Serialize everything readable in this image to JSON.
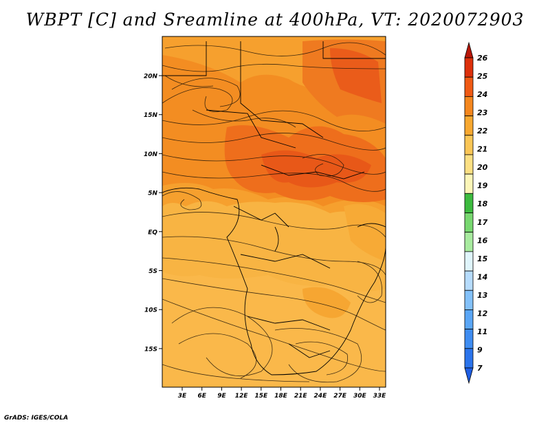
{
  "title": "WBPT [C] and Sreamline at 400hPa, VT: 2020072903",
  "credit": "GrADS: IGES/COLA",
  "map": {
    "lon_ticks": [
      "3E",
      "6E",
      "9E",
      "12E",
      "15E",
      "18E",
      "21E",
      "24E",
      "27E",
      "30E",
      "33E"
    ],
    "lat_ticks": [
      "20N",
      "15N",
      "10N",
      "5N",
      "EQ",
      "5S",
      "10S",
      "15S"
    ],
    "lon_range": [
      0,
      35
    ],
    "lat_range": [
      -20,
      25
    ],
    "background_color": "#f7b23e"
  },
  "colorbar": {
    "levels": [
      "7",
      "9",
      "11",
      "12",
      "13",
      "14",
      "15",
      "16",
      "17",
      "18",
      "19",
      "20",
      "21",
      "22",
      "23",
      "24",
      "25",
      "26"
    ],
    "colors": [
      "#1e5ee3",
      "#2b74ec",
      "#3f8df2",
      "#5aa6f6",
      "#83c1fa",
      "#b6dcfd",
      "#e0f5fc",
      "#a8eb9f",
      "#78d870",
      "#3dbb3f",
      "#fdf6b8",
      "#fde083",
      "#fbc656",
      "#f8a830",
      "#f5871e",
      "#f05a14",
      "#dd300b",
      "#b91708"
    ]
  }
}
